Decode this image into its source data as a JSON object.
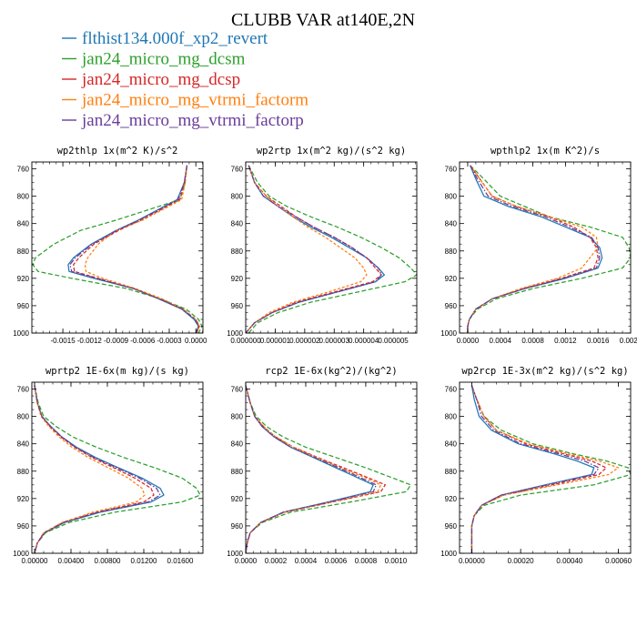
{
  "title": "CLUBB VAR at140E,2N",
  "legend": [
    {
      "label": "flthist134.000f_xp2_revert",
      "color": "#1f77b4"
    },
    {
      "label": "jan24_micro_mg_dcsm",
      "color": "#2ca02c"
    },
    {
      "label": "jan24_micro_mg_dcsp",
      "color": "#d62728"
    },
    {
      "label": "jan24_micro_mg_vtrmi_factorm",
      "color": "#ff7f0e"
    },
    {
      "label": "jan24_micro_mg_vtrmi_factorp",
      "color": "#6a3d9a"
    }
  ],
  "chart_data": [
    {
      "type": "line",
      "title": "wp2thlp  1x(m^2 K)/s^2",
      "xlim": [
        -0.00185,
        8e-05
      ],
      "ylim": [
        1000,
        750
      ],
      "xticks": [
        -0.0015,
        -0.0012,
        -0.0009,
        -0.0006,
        -0.0003,
        0.0
      ],
      "xtick_labels": [
        "-0.0015",
        "-0.0012",
        "-0.0009",
        "-0.0006",
        "-0.0003",
        "0.0000"
      ],
      "yticks": [
        760,
        800,
        840,
        880,
        920,
        960,
        1000
      ],
      "y": [
        755,
        780,
        805,
        835,
        850,
        870,
        890,
        900,
        910,
        920,
        935,
        950,
        965,
        980,
        990,
        1000
      ],
      "series": [
        {
          "color": "#1f77b4",
          "dash": "",
          "values": [
            -0.0001,
            -0.00013,
            -0.00021,
            -0.00065,
            -0.0009,
            -0.00118,
            -0.00138,
            -0.00144,
            -0.00143,
            -0.00115,
            -0.0007,
            -0.00042,
            -0.00016,
            -2e-05,
            3e-05,
            0.0
          ]
        },
        {
          "color": "#2ca02c",
          "dash": "5,2.5",
          "values": [
            -0.0001,
            -0.00012,
            -0.00018,
            -0.0009,
            -0.0013,
            -0.0016,
            -0.00181,
            -0.00184,
            -0.00178,
            -0.0014,
            -0.00078,
            -0.0004,
            -0.00011,
            3e-05,
            7e-05,
            3e-05
          ]
        },
        {
          "color": "#d62728",
          "dash": "4,2",
          "values": [
            -0.0001,
            -0.00013,
            -0.00018,
            -0.00062,
            -0.00087,
            -0.00115,
            -0.00132,
            -0.00138,
            -0.00137,
            -0.0011,
            -0.0007,
            -0.00041,
            -0.00015,
            0.0,
            4e-05,
            1e-05
          ]
        },
        {
          "color": "#ff7f0e",
          "dash": "3,2",
          "values": [
            -0.0001,
            -0.00012,
            -0.00016,
            -0.0006,
            -0.0009,
            -0.0011,
            -0.00122,
            -0.00125,
            -0.00124,
            -0.00105,
            -0.00068,
            -0.00038,
            -0.00014,
            0.0,
            4e-05,
            1e-05
          ]
        },
        {
          "color": "#6a3d9a",
          "dash": "6,2,1.5,2",
          "values": [
            -0.0001,
            -0.00013,
            -0.0002,
            -0.00064,
            -0.00089,
            -0.00117,
            -0.00136,
            -0.00142,
            -0.0014,
            -0.00112,
            -0.0007,
            -0.00041,
            -0.00015,
            -1e-05,
            3e-05,
            0.0
          ]
        }
      ]
    },
    {
      "type": "line",
      "title": "wp2rtp  1x(m^2 kg)/(s^2 kg)",
      "xlim": [
        0.0,
        5.8e-06
      ],
      "ylim": [
        1000,
        750
      ],
      "xticks": [
        0.0,
        1e-06,
        2e-06,
        3e-06,
        4e-06,
        5e-06
      ],
      "xtick_labels": [
        "0.000000",
        "0.000001",
        "0.000002",
        "0.000003",
        "0.000004",
        "0.000005"
      ],
      "yticks": [
        760,
        800,
        840,
        880,
        920,
        960,
        1000
      ],
      "y": [
        755,
        780,
        800,
        815,
        830,
        845,
        860,
        875,
        890,
        905,
        915,
        925,
        940,
        955,
        970,
        985,
        1000
      ],
      "series": [
        {
          "color": "#1f77b4",
          "dash": "",
          "values": [
            1e-07,
            3e-07,
            6e-07,
            1.1e-06,
            1.6e-06,
            2.2e-06,
            2.9e-06,
            3.5e-06,
            4.1e-06,
            4.5e-06,
            4.7e-06,
            4.4e-06,
            3.1e-06,
            1.8e-06,
            9e-07,
            3e-07,
            0.0
          ]
        },
        {
          "color": "#2ca02c",
          "dash": "5,2.5",
          "values": [
            1e-07,
            4e-07,
            8e-07,
            1.4e-06,
            2.2e-06,
            3.1e-06,
            3.9e-06,
            4.6e-06,
            5.2e-06,
            5.6e-06,
            5.8e-06,
            5.4e-06,
            3.8e-06,
            2.2e-06,
            1.1e-06,
            4e-07,
            1e-07
          ]
        },
        {
          "color": "#d62728",
          "dash": "4,2",
          "values": [
            1e-07,
            3e-07,
            7e-07,
            1.2e-06,
            1.7e-06,
            2.3e-06,
            3e-06,
            3.6e-06,
            4.1e-06,
            4.4e-06,
            4.6e-06,
            4.3e-06,
            3e-06,
            1.7e-06,
            9e-07,
            3e-07,
            0.0
          ]
        },
        {
          "color": "#ff7f0e",
          "dash": "3,2",
          "values": [
            1e-07,
            3e-07,
            7e-07,
            1.1e-06,
            1.6e-06,
            2.1e-06,
            2.7e-06,
            3.2e-06,
            3.7e-06,
            4e-06,
            4.1e-06,
            3.9e-06,
            2.8e-06,
            1.6e-06,
            8e-07,
            3e-07,
            0.0
          ]
        },
        {
          "color": "#6a3d9a",
          "dash": "6,2,1.5,2",
          "values": [
            1e-07,
            3e-07,
            6e-07,
            1.1e-06,
            1.7e-06,
            2.3e-06,
            3e-06,
            3.6e-06,
            4.1e-06,
            4.5e-06,
            4.6e-06,
            4.4e-06,
            3.1e-06,
            1.8e-06,
            9e-07,
            3e-07,
            0.0
          ]
        }
      ]
    },
    {
      "type": "line",
      "title": "wpthlp2  1x(m K^2)/s",
      "xlim": [
        -0.0001,
        0.002
      ],
      "ylim": [
        1000,
        750
      ],
      "xticks": [
        0.0,
        0.0004,
        0.0008,
        0.0012,
        0.0016,
        0.002
      ],
      "xtick_labels": [
        "0.0000",
        "0.0004",
        "0.0008",
        "0.0012",
        "0.0016",
        "0.0020"
      ],
      "yticks": [
        760,
        800,
        840,
        880,
        920,
        960,
        1000
      ],
      "y": [
        755,
        775,
        800,
        815,
        830,
        845,
        860,
        875,
        890,
        905,
        920,
        935,
        950,
        965,
        980,
        990,
        1000
      ],
      "series": [
        {
          "color": "#1f77b4",
          "dash": "",
          "values": [
            3e-05,
            0.0001,
            0.0002,
            0.0005,
            0.0009,
            0.0012,
            0.0015,
            0.00162,
            0.00165,
            0.0016,
            0.0012,
            0.0007,
            0.0003,
            0.0001,
            2e-05,
            0.0,
            0.0
          ]
        },
        {
          "color": "#2ca02c",
          "dash": "5,2.5",
          "values": [
            3e-05,
            0.0002,
            0.0004,
            0.0007,
            0.001,
            0.0015,
            0.0019,
            0.00198,
            0.002,
            0.0019,
            0.0014,
            0.0008,
            0.00035,
            0.00012,
            2e-05,
            0.0,
            0.0
          ]
        },
        {
          "color": "#d62728",
          "dash": "4,2",
          "values": [
            3e-05,
            0.00015,
            0.0003,
            0.0006,
            0.001,
            0.0013,
            0.0015,
            0.00158,
            0.0016,
            0.00155,
            0.00115,
            0.00068,
            0.0003,
            0.0001,
            2e-05,
            0.0,
            0.0
          ]
        },
        {
          "color": "#ff7f0e",
          "dash": "3,2",
          "values": [
            3e-05,
            0.00015,
            0.0003,
            0.0006,
            0.001,
            0.0014,
            0.00158,
            0.0016,
            0.0015,
            0.0014,
            0.0011,
            0.00065,
            0.0003,
            0.0001,
            2e-05,
            0.0,
            0.0
          ]
        },
        {
          "color": "#6a3d9a",
          "dash": "6,2,1.5,2",
          "values": [
            3e-05,
            0.00012,
            0.00025,
            0.00055,
            0.00095,
            0.00125,
            0.00152,
            0.0016,
            0.00162,
            0.00158,
            0.00118,
            0.0007,
            0.0003,
            0.0001,
            2e-05,
            0.0,
            0.0
          ]
        }
      ]
    },
    {
      "type": "line",
      "title": "wprtp2  1E-6x(m kg)/(s kg)",
      "xlim": [
        -0.0003,
        0.0185
      ],
      "ylim": [
        1000,
        750
      ],
      "xticks": [
        0.0,
        0.004,
        0.008,
        0.012,
        0.016
      ],
      "xtick_labels": [
        "0.00000",
        "0.00400",
        "0.00800",
        "0.01200",
        "0.01600"
      ],
      "yticks": [
        760,
        800,
        840,
        880,
        920,
        960,
        1000
      ],
      "y": [
        755,
        780,
        800,
        815,
        830,
        845,
        860,
        875,
        890,
        905,
        915,
        925,
        940,
        955,
        970,
        985,
        1000
      ],
      "series": [
        {
          "color": "#1f77b4",
          "dash": "",
          "values": [
            0.0,
            0.0003,
            0.0008,
            0.0018,
            0.003,
            0.0046,
            0.0067,
            0.0092,
            0.0118,
            0.0138,
            0.0142,
            0.0128,
            0.0072,
            0.0033,
            0.0011,
            0.0003,
            0.0
          ]
        },
        {
          "color": "#2ca02c",
          "dash": "5,2.5",
          "values": [
            0.0,
            0.0004,
            0.001,
            0.0024,
            0.0042,
            0.0068,
            0.0098,
            0.0132,
            0.0162,
            0.0178,
            0.0182,
            0.0162,
            0.0088,
            0.0038,
            0.0012,
            0.0003,
            0.0
          ]
        },
        {
          "color": "#d62728",
          "dash": "4,2",
          "values": [
            0.0,
            0.0003,
            0.0008,
            0.0017,
            0.0029,
            0.0044,
            0.0063,
            0.0087,
            0.011,
            0.0128,
            0.0131,
            0.012,
            0.0068,
            0.0031,
            0.001,
            0.0003,
            0.0
          ]
        },
        {
          "color": "#ff7f0e",
          "dash": "3,2",
          "values": [
            0.0,
            0.0003,
            0.0007,
            0.0016,
            0.0027,
            0.0041,
            0.0059,
            0.0081,
            0.0103,
            0.0118,
            0.0121,
            0.0112,
            0.0064,
            0.003,
            0.001,
            0.0003,
            0.0
          ]
        },
        {
          "color": "#6a3d9a",
          "dash": "6,2,1.5,2",
          "values": [
            0.0,
            0.0003,
            0.0008,
            0.0018,
            0.003,
            0.0045,
            0.0065,
            0.009,
            0.0115,
            0.0134,
            0.0138,
            0.0125,
            0.007,
            0.0032,
            0.0011,
            0.0003,
            0.0
          ]
        }
      ]
    },
    {
      "type": "line",
      "title": "rcp2  1E-6x(kg^2)/(kg^2)",
      "xlim": [
        0.0,
        0.00114
      ],
      "ylim": [
        1000,
        750
      ],
      "xticks": [
        0.0,
        0.0002,
        0.0004,
        0.0006,
        0.0008,
        0.001
      ],
      "xtick_labels": [
        "0.0000",
        "0.0002",
        "0.0004",
        "0.0006",
        "0.0008",
        "0.0010"
      ],
      "yticks": [
        760,
        800,
        840,
        880,
        920,
        960,
        1000
      ],
      "y": [
        755,
        780,
        800,
        815,
        830,
        845,
        860,
        875,
        890,
        900,
        910,
        925,
        940,
        955,
        970,
        985,
        1000
      ],
      "series": [
        {
          "color": "#1f77b4",
          "dash": "",
          "values": [
            0.0,
            3e-05,
            6e-05,
            0.00011,
            0.00019,
            0.0003,
            0.00045,
            0.0006,
            0.00075,
            0.00085,
            0.00083,
            0.00055,
            0.00025,
            0.0001,
            3e-05,
            1e-05,
            0.0
          ]
        },
        {
          "color": "#2ca02c",
          "dash": "5,2.5",
          "values": [
            0.0,
            3e-05,
            7e-05,
            0.00014,
            0.00025,
            0.0004,
            0.0006,
            0.0008,
            0.00098,
            0.0011,
            0.00107,
            0.0007,
            0.0003,
            0.00011,
            3e-05,
            1e-05,
            0.0
          ]
        },
        {
          "color": "#d62728",
          "dash": "4,2",
          "values": [
            0.0,
            3e-05,
            6e-05,
            0.00012,
            0.0002,
            0.00032,
            0.00048,
            0.00065,
            0.00082,
            0.00093,
            0.0009,
            0.00058,
            0.00026,
            0.0001,
            3e-05,
            1e-05,
            0.0
          ]
        },
        {
          "color": "#ff7f0e",
          "dash": "3,2",
          "values": [
            0.0,
            3e-05,
            6e-05,
            0.00012,
            0.0002,
            0.00032,
            0.00047,
            0.00063,
            0.0008,
            0.0009,
            0.00088,
            0.00057,
            0.00026,
            0.0001,
            3e-05,
            1e-05,
            0.0
          ]
        },
        {
          "color": "#6a3d9a",
          "dash": "6,2,1.5,2",
          "values": [
            0.0,
            3e-05,
            6e-05,
            0.00011,
            0.00019,
            0.0003,
            0.00046,
            0.00062,
            0.00077,
            0.00087,
            0.00085,
            0.00056,
            0.00025,
            0.0001,
            3e-05,
            1e-05,
            0.0
          ]
        }
      ]
    },
    {
      "type": "line",
      "title": "wp2rcp  1E-3x(m^2 kg)/(s^2 kg)",
      "xlim": [
        -5e-05,
        0.00065
      ],
      "ylim": [
        1000,
        750
      ],
      "xticks": [
        0.0,
        0.0002,
        0.0004,
        0.0006
      ],
      "xtick_labels": [
        "0.00000",
        "0.00020",
        "0.00040",
        "0.00060"
      ],
      "yticks": [
        760,
        800,
        840,
        880,
        920,
        960,
        1000
      ],
      "y": [
        755,
        775,
        800,
        820,
        840,
        855,
        865,
        875,
        885,
        900,
        915,
        930,
        945,
        960,
        980,
        1000
      ],
      "series": [
        {
          "color": "#1f77b4",
          "dash": "",
          "values": [
            0.0,
            1e-05,
            3e-05,
            8e-05,
            0.00019,
            0.00034,
            0.00043,
            0.0005,
            0.00049,
            0.0003,
            0.00012,
            4e-05,
            1e-05,
            0.0,
            0.0,
            0.0
          ]
        },
        {
          "color": "#2ca02c",
          "dash": "5,2.5",
          "values": [
            0.0,
            2e-05,
            5e-05,
            0.00012,
            0.00025,
            0.00042,
            0.00055,
            0.00064,
            0.00065,
            0.0005,
            0.0002,
            5e-05,
            1e-05,
            0.0,
            0.0,
            0.0
          ]
        },
        {
          "color": "#d62728",
          "dash": "4,2",
          "values": [
            0.0,
            2e-05,
            5e-05,
            0.0001,
            0.00022,
            0.00038,
            0.00049,
            0.00055,
            0.00052,
            0.00033,
            0.00013,
            4e-05,
            1e-05,
            0.0,
            0.0,
            0.0
          ]
        },
        {
          "color": "#ff7f0e",
          "dash": "3,2",
          "values": [
            0.0,
            2e-05,
            5e-05,
            0.0001,
            0.00023,
            0.0004,
            0.00052,
            0.0006,
            0.00056,
            0.00035,
            0.00013,
            4e-05,
            1e-05,
            0.0,
            0.0,
            0.0
          ]
        },
        {
          "color": "#6a3d9a",
          "dash": "6,2,1.5,2",
          "values": [
            0.0,
            2e-05,
            4e-05,
            9e-05,
            0.0002,
            0.00036,
            0.00046,
            0.00052,
            0.0005,
            0.00031,
            0.00012,
            4e-05,
            1e-05,
            0.0,
            0.0,
            0.0
          ]
        }
      ]
    }
  ]
}
